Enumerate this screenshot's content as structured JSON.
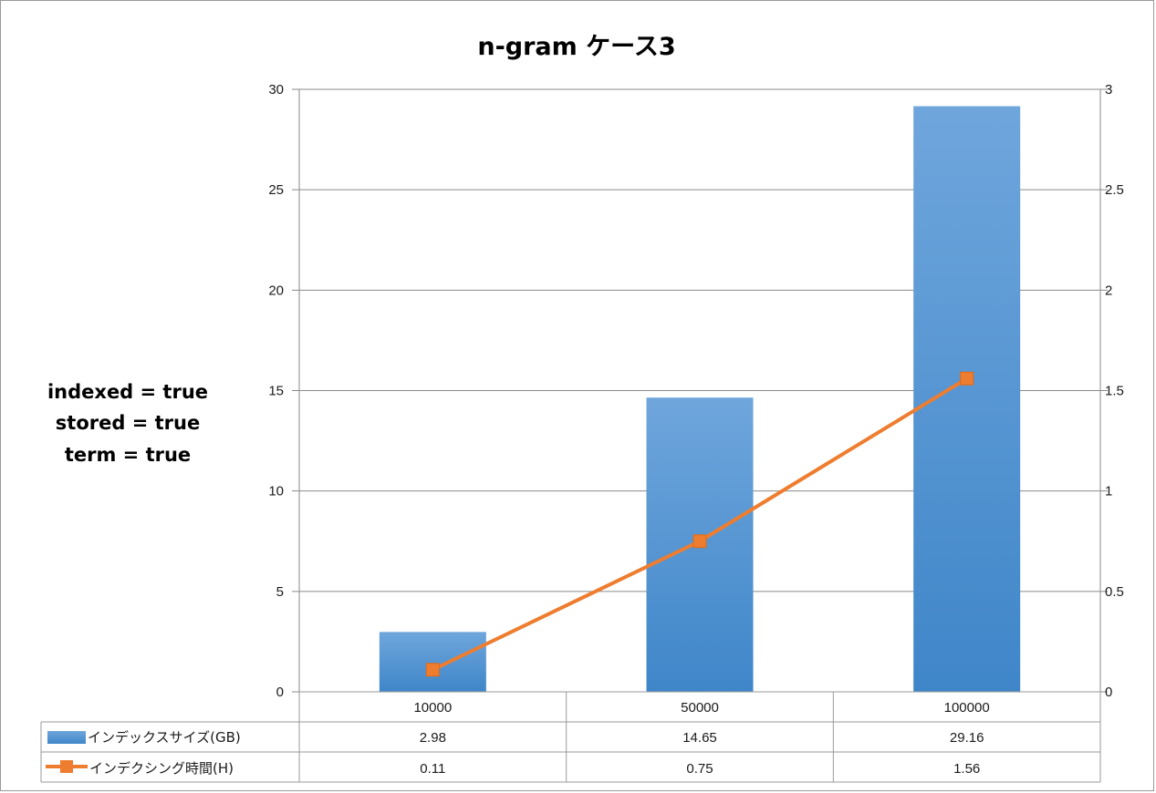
{
  "chart_data": {
    "type": "bar",
    "title": "n-gram ケース3",
    "annotation_lines": [
      "indexed = true",
      "stored = true",
      "term = true"
    ],
    "categories": [
      "10000",
      "50000",
      "100000"
    ],
    "series": [
      {
        "name": "インデックスサイズ(GB)",
        "type": "bar",
        "axis": "left",
        "values": [
          2.98,
          14.65,
          29.16
        ],
        "value_labels": [
          "2.98",
          "14.65",
          "29.16"
        ],
        "color": "#4f93d6"
      },
      {
        "name": "インデクシング時間(H)",
        "type": "line",
        "axis": "right",
        "values": [
          0.11,
          0.75,
          1.56
        ],
        "value_labels": [
          "0.11",
          "0.75",
          "1.56"
        ],
        "color": "#ee7d2f"
      }
    ],
    "ylim_left": [
      0,
      30
    ],
    "yticks_left": [
      "0",
      "5",
      "10",
      "15",
      "20",
      "25",
      "30"
    ],
    "ylim_right": [
      0,
      3
    ],
    "yticks_right": [
      "0",
      "0.5",
      "1",
      "1.5",
      "2",
      "2.5",
      "3"
    ],
    "grid": true,
    "legend": "data-table-below"
  }
}
